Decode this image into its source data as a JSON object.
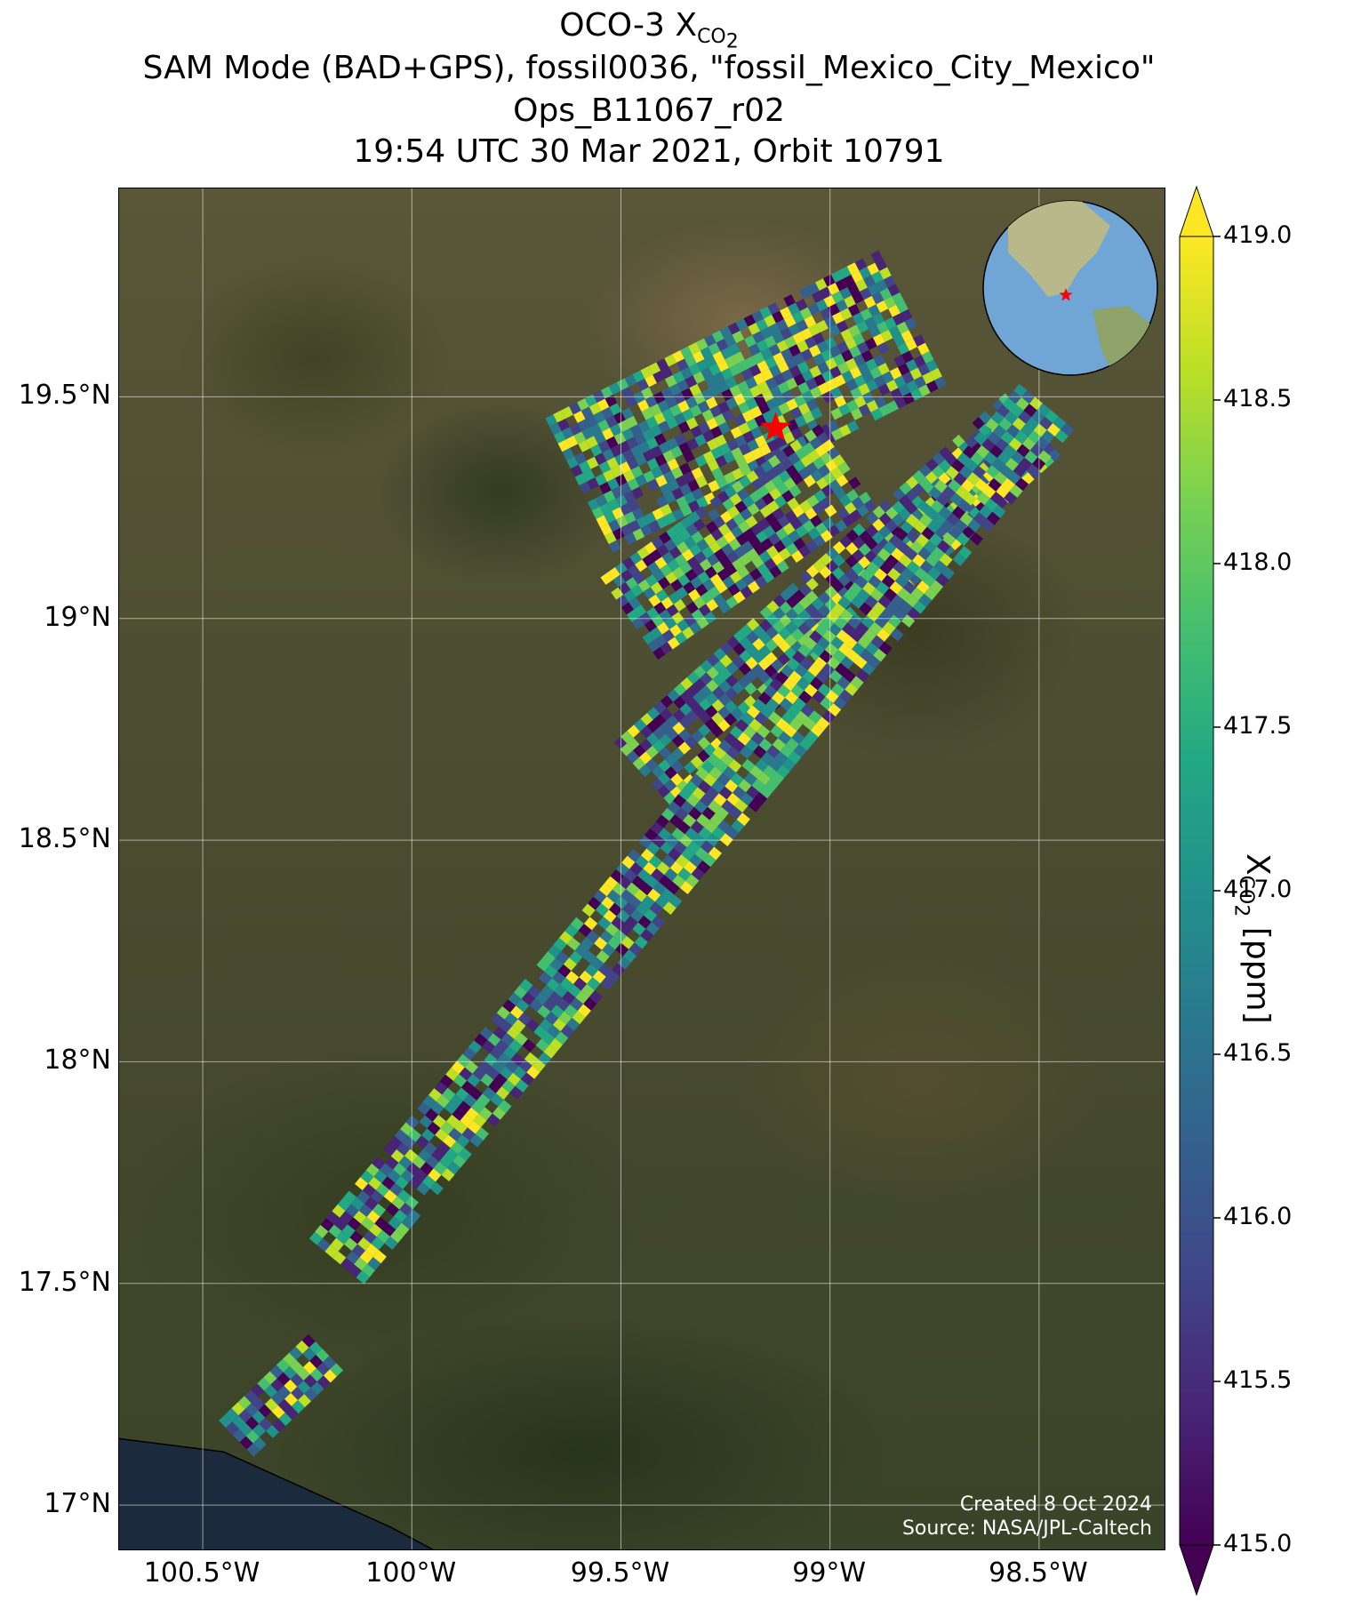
{
  "title": {
    "line1_prefix": "OCO-3 X",
    "line1_sub": "CO",
    "line1_sub2": "2",
    "line2": "SAM Mode (BAD+GPS), fossil0036, \"fossil_Mexico_City_Mexico\"",
    "line3": "Ops_B11067_r02",
    "line4": "19:54 UTC 30 Mar 2021, Orbit 10791"
  },
  "map": {
    "lon_range": [
      -100.7,
      -98.2
    ],
    "lat_range": [
      16.9,
      19.97
    ],
    "lat_ticks": [
      {
        "value": 19.5,
        "label": "19.5°N"
      },
      {
        "value": 19.0,
        "label": "19°N"
      },
      {
        "value": 18.5,
        "label": "18.5°N"
      },
      {
        "value": 18.0,
        "label": "18°N"
      },
      {
        "value": 17.5,
        "label": "17.5°N"
      },
      {
        "value": 17.0,
        "label": "17°N"
      }
    ],
    "lon_ticks": [
      {
        "value": -100.5,
        "label": "100.5°W"
      },
      {
        "value": -100.0,
        "label": "100°W"
      },
      {
        "value": -99.5,
        "label": "99.5°W"
      },
      {
        "value": -99.0,
        "label": "99°W"
      },
      {
        "value": -98.5,
        "label": "98.5°W"
      }
    ],
    "grid": true,
    "target": {
      "name": "fossil_Mexico_City_Mexico",
      "lon": -99.13,
      "lat": 19.43,
      "marker": "red-star"
    },
    "swaths": [
      {
        "from": [
          -99.6,
          19.3
        ],
        "to": [
          -98.8,
          19.68
        ],
        "half_width_deg": 0.18
      },
      {
        "from": [
          -99.48,
          19.0
        ],
        "to": [
          -98.95,
          19.35
        ],
        "half_width_deg": 0.12
      },
      {
        "from": [
          -99.45,
          18.65
        ],
        "to": [
          -98.5,
          19.45
        ],
        "half_width_deg": 0.1
      },
      {
        "from": [
          -100.18,
          17.55
        ],
        "to": [
          -98.48,
          19.48
        ],
        "half_width_deg": 0.085
      },
      {
        "from": [
          -100.42,
          17.15
        ],
        "to": [
          -100.2,
          17.35
        ],
        "half_width_deg": 0.06
      }
    ],
    "inset_globe": {
      "marker": "red-star",
      "center_region": "North and Central America"
    },
    "credit_line1": "Created 8 Oct 2024",
    "credit_line2": "Source: NASA/JPL-Caltech"
  },
  "colorbar": {
    "colormap": "viridis",
    "min": 415.0,
    "max": 419.0,
    "extend": "both",
    "ticks": [
      "419.0",
      "418.5",
      "418.0",
      "417.5",
      "417.0",
      "416.5",
      "416.0",
      "415.5",
      "415.0"
    ],
    "label_prefix": "X",
    "label_sub": "CO",
    "label_sub2": "2",
    "label_suffix": " [ppm]"
  }
}
